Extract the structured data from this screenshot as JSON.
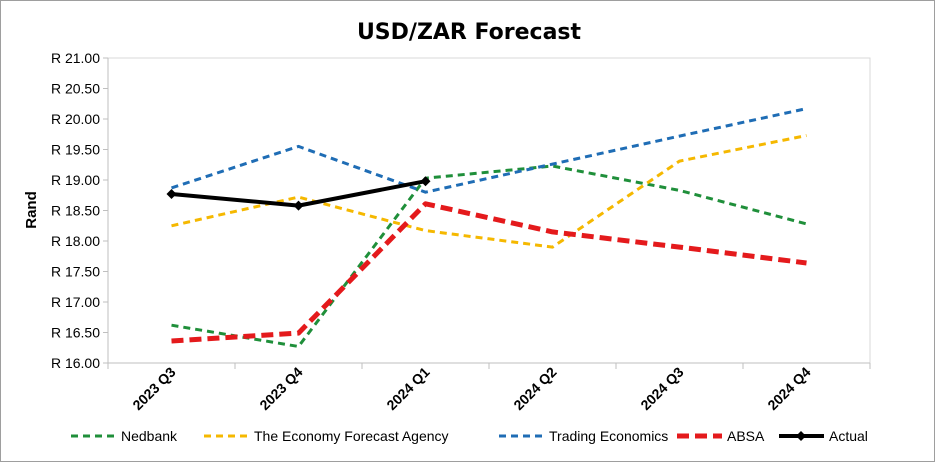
{
  "chart_data": {
    "type": "line",
    "title": "USD/ZAR Forecast",
    "xlabel": "",
    "ylabel": "Rand",
    "categories": [
      "2023 Q3",
      "2023 Q4",
      "2024 Q1",
      "2024 Q2",
      "2024 Q3",
      "2024 Q4"
    ],
    "ylim": [
      16.0,
      21.0
    ],
    "yticks": [
      16.0,
      16.5,
      17.0,
      17.5,
      18.0,
      18.5,
      19.0,
      19.5,
      20.0,
      20.5,
      21.0
    ],
    "ytick_labels": [
      "R 16.00",
      "R 16.50",
      "R 17.00",
      "R 17.50",
      "R 18.00",
      "R 18.50",
      "R 19.00",
      "R 19.50",
      "R 20.00",
      "R 20.50",
      "R 21.00"
    ],
    "grid": false,
    "legend_position": "bottom",
    "series": [
      {
        "name": "Nedbank",
        "color": "#1f8f3a",
        "style": "dashed",
        "values": [
          16.62,
          16.27,
          19.03,
          19.23,
          18.83,
          18.28
        ]
      },
      {
        "name": "The Economy Forecast Agency",
        "color": "#f5b800",
        "style": "dashed",
        "values": [
          18.25,
          18.72,
          18.17,
          17.9,
          19.31,
          19.73
        ]
      },
      {
        "name": "Trading Economics",
        "color": "#1f6db5",
        "style": "dashed",
        "values": [
          18.87,
          19.55,
          18.8,
          19.26,
          19.72,
          20.17
        ]
      },
      {
        "name": "ABSA",
        "color": "#e41a1c",
        "style": "dashed-thick",
        "values": [
          16.36,
          16.49,
          18.61,
          18.15,
          17.9,
          17.64
        ]
      },
      {
        "name": "Actual",
        "color": "#000000",
        "style": "solid-diamond",
        "values": [
          18.77,
          18.58,
          18.98,
          null,
          null,
          null
        ]
      }
    ]
  }
}
